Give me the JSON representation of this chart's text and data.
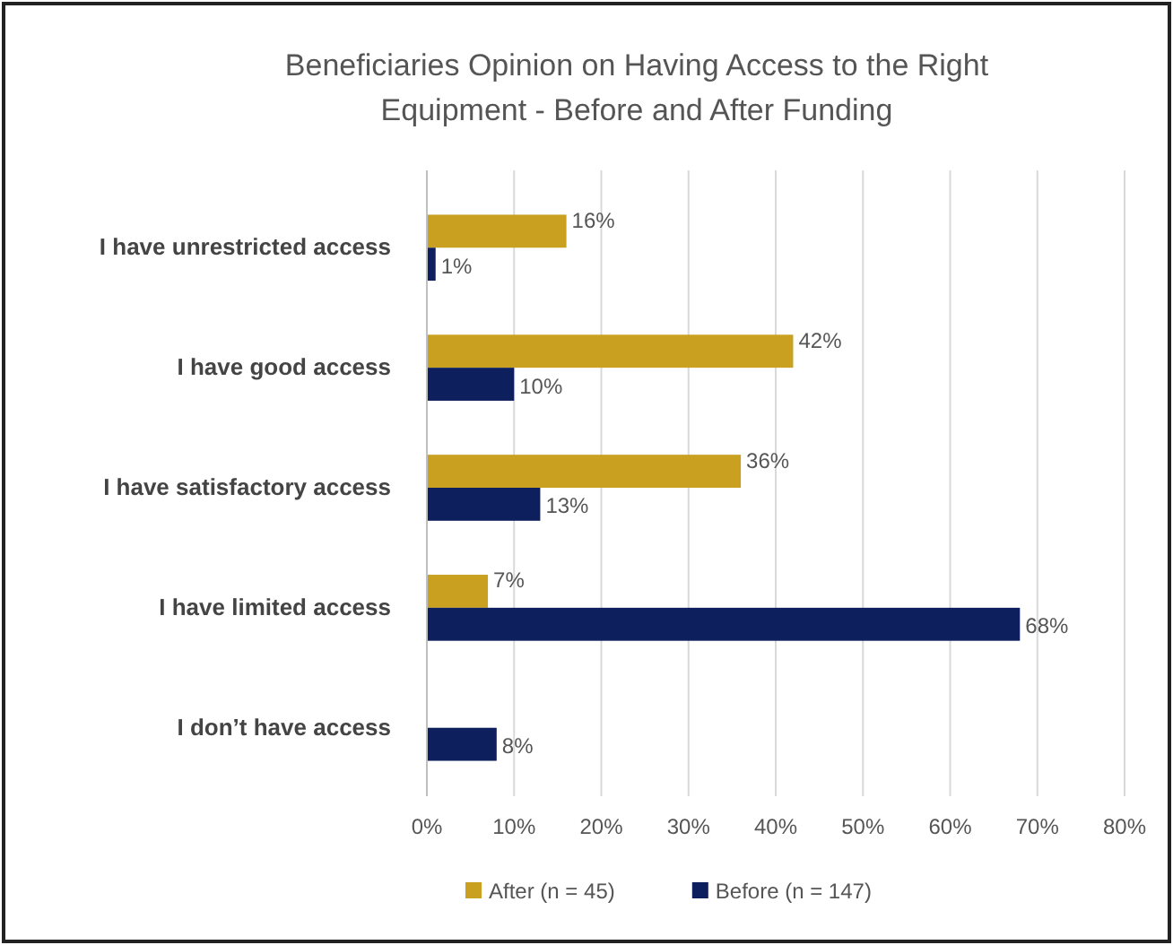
{
  "chart_data": {
    "type": "bar",
    "orientation": "horizontal",
    "title": "Beneficiaries Opinion on Having Access to the Right\nEquipment - Before and After Funding",
    "categories": [
      "I have unrestricted access",
      "I have good access",
      "I have satisfactory access",
      "I have limited access",
      "I don’t have access"
    ],
    "series": [
      {
        "name": "After (n = 45)",
        "color": "#c9a020",
        "values": [
          16,
          42,
          36,
          7,
          null
        ],
        "value_labels": [
          "16%",
          "42%",
          "36%",
          "7%",
          null
        ]
      },
      {
        "name": "Before (n = 147)",
        "color": "#0d1f5c",
        "values": [
          1,
          10,
          13,
          68,
          8
        ],
        "value_labels": [
          "1%",
          "10%",
          "13%",
          "68%",
          "8%"
        ]
      }
    ],
    "xlim": [
      0,
      80
    ],
    "xticks": [
      {
        "value": 0,
        "label": "0%"
      },
      {
        "value": 10,
        "label": "10%"
      },
      {
        "value": 20,
        "label": "20%"
      },
      {
        "value": 30,
        "label": "30%"
      },
      {
        "value": 40,
        "label": "40%"
      },
      {
        "value": 50,
        "label": "50%"
      },
      {
        "value": 60,
        "label": "60%"
      },
      {
        "value": 70,
        "label": "70%"
      },
      {
        "value": 80,
        "label": "80%"
      }
    ],
    "grid": "x",
    "legend": "bottom"
  }
}
